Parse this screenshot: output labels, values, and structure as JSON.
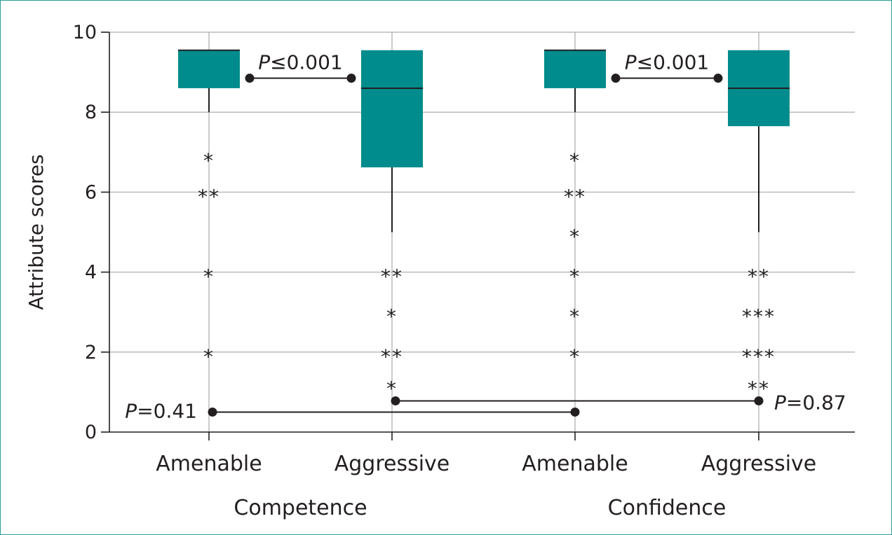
{
  "chart_data": {
    "type": "box",
    "ylabel": "Attribute scores",
    "ylim": [
      0,
      10
    ],
    "yticks": [
      0,
      2,
      4,
      6,
      8,
      10
    ],
    "grid": true,
    "colors": {
      "box": "#008c8c",
      "line": "#231f20",
      "grid": "#bbbbbb",
      "border": "#2a9d9a"
    },
    "groups": [
      "Competence",
      "Confidence"
    ],
    "categories": [
      "Amenable",
      "Aggressive",
      "Amenable",
      "Aggressive"
    ],
    "boxes": [
      {
        "group": "Competence",
        "category": "Amenable",
        "q1": 8.6,
        "median": 9.55,
        "q3": 9.55,
        "whisker_low": 8.0,
        "whisker_high": 9.55,
        "outliers": [
          {
            "y": 6.9,
            "label": "*"
          },
          {
            "y": 6.0,
            "label": "**"
          },
          {
            "y": 4.0,
            "label": "*"
          },
          {
            "y": 2.0,
            "label": "*"
          }
        ]
      },
      {
        "group": "Competence",
        "category": "Aggressive",
        "q1": 6.62,
        "median": 8.6,
        "q3": 9.55,
        "whisker_low": 5.0,
        "whisker_high": 9.55,
        "outliers": [
          {
            "y": 4.0,
            "label": "**"
          },
          {
            "y": 3.0,
            "label": "*"
          },
          {
            "y": 2.0,
            "label": "**"
          },
          {
            "y": 1.2,
            "label": "*"
          }
        ]
      },
      {
        "group": "Confidence",
        "category": "Amenable",
        "q1": 8.6,
        "median": 9.55,
        "q3": 9.55,
        "whisker_low": 8.0,
        "whisker_high": 9.55,
        "outliers": [
          {
            "y": 6.9,
            "label": "*"
          },
          {
            "y": 6.0,
            "label": "**"
          },
          {
            "y": 5.0,
            "label": "*"
          },
          {
            "y": 4.0,
            "label": "*"
          },
          {
            "y": 3.0,
            "label": "*"
          },
          {
            "y": 2.0,
            "label": "*"
          }
        ]
      },
      {
        "group": "Confidence",
        "category": "Aggressive",
        "q1": 7.65,
        "median": 8.6,
        "q3": 9.55,
        "whisker_low": 5.0,
        "whisker_high": 9.55,
        "outliers": [
          {
            "y": 4.0,
            "label": "**"
          },
          {
            "y": 3.0,
            "label": "***"
          },
          {
            "y": 2.0,
            "label": "***"
          },
          {
            "y": 1.2,
            "label": "**"
          }
        ]
      }
    ],
    "comparisons": [
      {
        "from": 0,
        "to": 1,
        "y": 8.85,
        "p_prefix": "P",
        "p_rest": "≤0.001",
        "label_side": "middle"
      },
      {
        "from": 2,
        "to": 3,
        "y": 8.85,
        "p_prefix": "P",
        "p_rest": "≤0.001",
        "label_side": "middle"
      },
      {
        "from": 0,
        "to": 2,
        "y": 0.5,
        "p_prefix": "P",
        "p_rest": "=0.41",
        "label_side": "left"
      },
      {
        "from": 1,
        "to": 3,
        "y": 0.78,
        "p_prefix": "P",
        "p_rest": "=0.87",
        "label_side": "right"
      }
    ]
  }
}
